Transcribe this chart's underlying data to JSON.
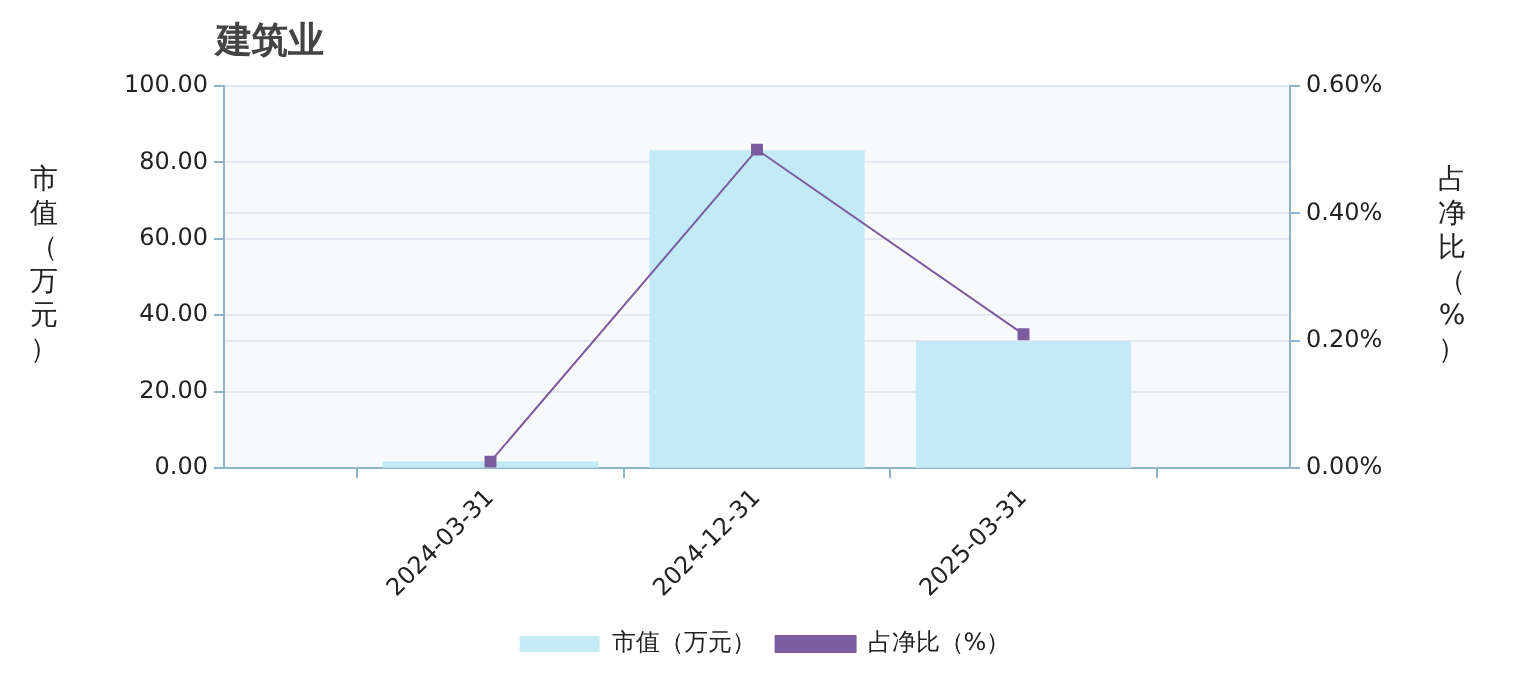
{
  "chart_data": {
    "type": "bar",
    "title": "建筑业",
    "ylabel": "市值（万元）",
    "y2label": "占净比（%）",
    "categories": [
      "2024-03-31",
      "2024-12-31",
      "2025-03-31"
    ],
    "series": [
      {
        "name": "市值（万元）",
        "color": "#c2eaf7",
        "values": [
          1.5,
          83,
          33
        ]
      },
      {
        "name": "占净比（%）",
        "type": "line",
        "axis": "y2",
        "color": "#7b5c9e",
        "values": [
          0.01,
          0.5,
          0.21
        ]
      }
    ],
    "marker": "square",
    "grid": true,
    "legend": "bottom",
    "ylim": [
      0,
      100
    ],
    "yticks": [
      {
        "value": 0,
        "label": "0.00"
      },
      {
        "value": 20,
        "label": "20.00"
      },
      {
        "value": 40,
        "label": "40.00"
      },
      {
        "value": 60,
        "label": "60.00"
      },
      {
        "value": 80,
        "label": "80.00"
      },
      {
        "value": 100,
        "label": "100.00"
      }
    ],
    "y2lim": [
      0,
      0.6
    ],
    "y2ticks": [
      {
        "value": 0,
        "label": "0.00%"
      },
      {
        "value": 0.2,
        "label": "0.20%"
      },
      {
        "value": 0.4,
        "label": "0.40%"
      },
      {
        "value": 0.6,
        "label": "0.60%"
      }
    ]
  }
}
